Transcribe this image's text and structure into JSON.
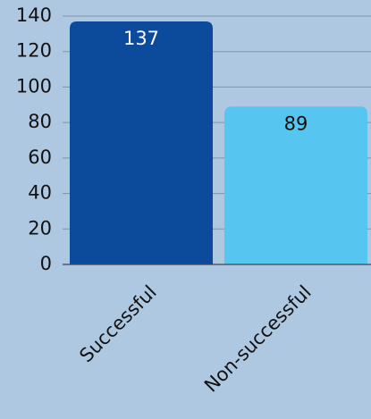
{
  "chart_data": {
    "type": "bar",
    "categories": [
      "Successful",
      "Non-successful"
    ],
    "values": [
      137,
      89
    ],
    "colors": [
      "#0c4a9b",
      "#56c6f1"
    ],
    "ylim": [
      0,
      140
    ],
    "yticks": [
      0,
      20,
      40,
      60,
      80,
      100,
      120,
      140
    ],
    "grid": true
  }
}
